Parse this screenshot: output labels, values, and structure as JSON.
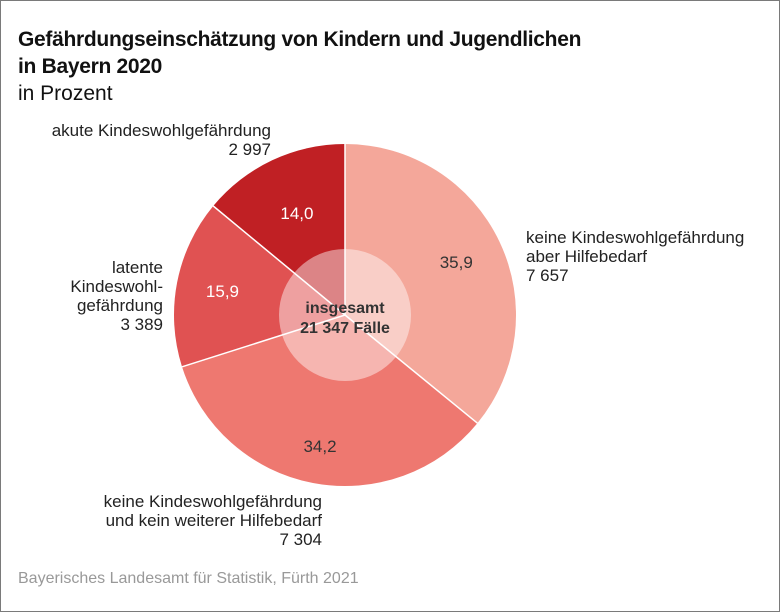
{
  "title_line1": "Gefährdungseinschätzung von Kindern und Jugendlichen",
  "title_line2": "in Bayern 2020",
  "subtitle": "in Prozent",
  "source": "Bayerisches Landesamt für Statistik, Fürth 2021",
  "center": {
    "line1": "insgesamt",
    "line2": "21 347 Fälle"
  },
  "chart_data": {
    "type": "pie",
    "title": "Gefährdungseinschätzung von Kindern und Jugendlichen in Bayern 2020",
    "subtitle": "in Prozent",
    "total_label": "insgesamt 21 347 Fälle",
    "total": 21347,
    "slices": [
      {
        "name": "keine Kindeswohlgefährdung aber Hilfebedarf",
        "label_lines": [
          "keine Kindeswohlgefährdung",
          "aber Hilfebedarf"
        ],
        "count": "7 657",
        "value": 35.9,
        "value_label": "35,9",
        "color": "#f4a79a",
        "text_color": "#333333"
      },
      {
        "name": "keine Kindeswohlgefährdung und kein weiterer Hilfebedarf",
        "label_lines": [
          "keine Kindeswohlgefährdung",
          "und kein weiterer Hilfebedarf"
        ],
        "count": "7 304",
        "value": 34.2,
        "value_label": "34,2",
        "color": "#ee7870",
        "text_color": "#333333"
      },
      {
        "name": "latente Kindeswohlgefährdung",
        "label_lines": [
          "latente",
          "Kindeswohl-",
          "gefährdung"
        ],
        "count": "3 389",
        "value": 15.9,
        "value_label": "15,9",
        "color": "#e05252",
        "text_color": "#ffffff"
      },
      {
        "name": "akute Kindeswohlgefährdung",
        "label_lines": [
          "akute Kindeswohlgefährdung"
        ],
        "count": "2 997",
        "value": 14.0,
        "value_label": "14,0",
        "color": "#c02024",
        "text_color": "#ffffff"
      }
    ]
  }
}
